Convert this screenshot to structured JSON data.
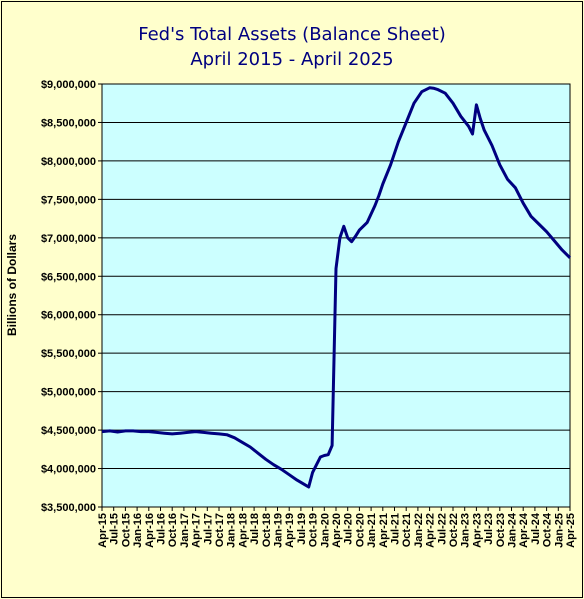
{
  "chart_data": {
    "type": "line",
    "title": "Fed's Total Assets (Balance Sheet)",
    "subtitle": "April 2015 - April 2025",
    "ylabel": "Billions  of Dollars",
    "xlabel": "",
    "ylim": [
      3500000,
      9000000
    ],
    "yticks": [
      3500000,
      4000000,
      4500000,
      5000000,
      5500000,
      6000000,
      6500000,
      7000000,
      7500000,
      8000000,
      8500000,
      9000000
    ],
    "ytick_labels": [
      "$3,500,000",
      "$4,000,000",
      "$4,500,000",
      "$5,000,000",
      "$5,500,000",
      "$6,000,000",
      "$6,500,000",
      "$7,000,000",
      "$7,500,000",
      "$8,000,000",
      "$8,500,000",
      "$9,000,000"
    ],
    "xticks": [
      "Apr-15",
      "Jul-15",
      "Oct-15",
      "Jan-16",
      "Apr-16",
      "Jul-16",
      "Oct-16",
      "Jan-17",
      "Apr-17",
      "Jul-17",
      "Oct-17",
      "Jan-18",
      "Apr-18",
      "Jul-18",
      "Oct-18",
      "Jan-19",
      "Apr-19",
      "Jul-19",
      "Oct-19",
      "Jan-20",
      "Apr-20",
      "Jul-20",
      "Oct-20",
      "Jan-21",
      "Apr-21",
      "Jul-21",
      "Oct-21",
      "Jan-22",
      "Apr-22",
      "Jul-22",
      "Oct-22",
      "Jan-23",
      "Apr-23",
      "Jul-23",
      "Oct-23",
      "Jan-24",
      "Apr-24",
      "Jul-24",
      "Oct-24",
      "Jan-25",
      "Apr-25"
    ],
    "grid": "horizontal",
    "colors": {
      "line": "#000080",
      "plot_bg": "#ccffff",
      "page_bg": "#ffffcc",
      "title": "#000080"
    },
    "series": [
      {
        "x": [
          "2015-04",
          "2015-06",
          "2015-08",
          "2015-10",
          "2015-12",
          "2016-02",
          "2016-04",
          "2016-06",
          "2016-08",
          "2016-10",
          "2016-12",
          "2017-02",
          "2017-04",
          "2017-06",
          "2017-08",
          "2017-10",
          "2017-12",
          "2018-02",
          "2018-04",
          "2018-06",
          "2018-08",
          "2018-10",
          "2018-12",
          "2019-02",
          "2019-04",
          "2019-06",
          "2019-08",
          "2019-09",
          "2019-10",
          "2019-11",
          "2019-12",
          "2020-01",
          "2020-02",
          "2020-03",
          "2020-04",
          "2020-05",
          "2020-06",
          "2020-07",
          "2020-08",
          "2020-09",
          "2020-10",
          "2020-12",
          "2021-02",
          "2021-03",
          "2021-04",
          "2021-06",
          "2021-08",
          "2021-10",
          "2021-12",
          "2022-02",
          "2022-04",
          "2022-05",
          "2022-06",
          "2022-08",
          "2022-10",
          "2022-12",
          "2023-02",
          "2023-03",
          "2023-04",
          "2023-05",
          "2023-06",
          "2023-08",
          "2023-10",
          "2023-12",
          "2024-02",
          "2024-04",
          "2024-06",
          "2024-08",
          "2024-10",
          "2024-12",
          "2025-02",
          "2025-04"
        ],
        "values": [
          4480000,
          4490000,
          4475000,
          4490000,
          4490000,
          4480000,
          4480000,
          4470000,
          4460000,
          4450000,
          4460000,
          4470000,
          4480000,
          4470000,
          4460000,
          4450000,
          4440000,
          4400000,
          4340000,
          4280000,
          4200000,
          4120000,
          4050000,
          3990000,
          3920000,
          3850000,
          3790000,
          3760000,
          3950000,
          4050000,
          4150000,
          4170000,
          4180000,
          4300000,
          6600000,
          7000000,
          7150000,
          7000000,
          6950000,
          7020000,
          7100000,
          7200000,
          7420000,
          7550000,
          7700000,
          7950000,
          8250000,
          8500000,
          8750000,
          8900000,
          8950000,
          8945000,
          8930000,
          8880000,
          8750000,
          8580000,
          8450000,
          8350000,
          8730000,
          8550000,
          8400000,
          8200000,
          7950000,
          7760000,
          7650000,
          7450000,
          7280000,
          7180000,
          7080000,
          6960000,
          6840000,
          6740000
        ]
      }
    ]
  }
}
